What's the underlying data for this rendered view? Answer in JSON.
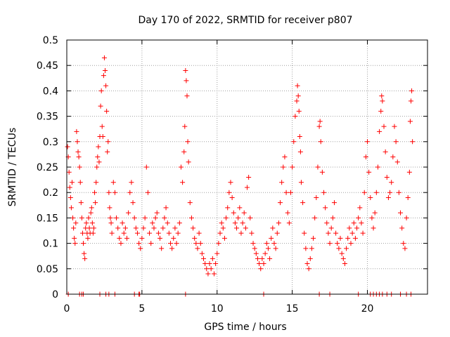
{
  "chart_data": {
    "type": "scatter",
    "title": "Day 170 of 2022, SRMTID for receiver p807",
    "xlabel": "GPS time / hours",
    "ylabel": "SRMTID / TECUs",
    "xlim": [
      0,
      24
    ],
    "ylim": [
      0,
      0.5
    ],
    "xticks": [
      0,
      5,
      10,
      15,
      20
    ],
    "xtick_labels": [
      "0",
      "5",
      "10",
      "15",
      "20"
    ],
    "yticks": [
      0,
      0.05,
      0.1,
      0.15,
      0.2,
      0.25,
      0.3,
      0.35,
      0.4,
      0.45,
      0.5
    ],
    "ytick_labels": [
      "0",
      "0.05",
      "0.1",
      "0.15",
      "0.2",
      "0.25",
      "0.3",
      "0.35",
      "0.4",
      "0.45",
      "0.5"
    ],
    "grid": true,
    "marker": "+",
    "color": "#ff0000",
    "series": [
      {
        "name": "SRMTID",
        "points": [
          [
            0.05,
            0.29
          ],
          [
            0.1,
            0.27
          ],
          [
            0.15,
            0.24
          ],
          [
            0.2,
            0.21
          ],
          [
            0.25,
            0.19
          ],
          [
            0.3,
            0.17
          ],
          [
            0.35,
            0.22
          ],
          [
            0.4,
            0.15
          ],
          [
            0.45,
            0.13
          ],
          [
            0.5,
            0.11
          ],
          [
            0.55,
            0.1
          ],
          [
            0.6,
            0.14
          ],
          [
            0.65,
            0.32
          ],
          [
            0.7,
            0.3
          ],
          [
            0.75,
            0.28
          ],
          [
            0.8,
            0.27
          ],
          [
            0.85,
            0.25
          ],
          [
            0.9,
            0.22
          ],
          [
            0.95,
            0.18
          ],
          [
            1.0,
            0.15
          ],
          [
            1.05,
            0.12
          ],
          [
            1.1,
            0.1
          ],
          [
            1.15,
            0.08
          ],
          [
            1.2,
            0.07
          ],
          [
            1.25,
            0.13
          ],
          [
            1.3,
            0.14
          ],
          [
            1.35,
            0.12
          ],
          [
            1.4,
            0.11
          ],
          [
            1.45,
            0.15
          ],
          [
            1.5,
            0.13
          ],
          [
            1.55,
            0.12
          ],
          [
            1.6,
            0.16
          ],
          [
            1.65,
            0.17
          ],
          [
            1.7,
            0.14
          ],
          [
            1.75,
            0.12
          ],
          [
            1.8,
            0.13
          ],
          [
            1.85,
            0.2
          ],
          [
            1.9,
            0.18
          ],
          [
            1.95,
            0.22
          ],
          [
            2.0,
            0.25
          ],
          [
            2.05,
            0.27
          ],
          [
            2.1,
            0.29
          ],
          [
            2.15,
            0.26
          ],
          [
            2.2,
            0.31
          ],
          [
            2.25,
            0.37
          ],
          [
            2.3,
            0.4
          ],
          [
            2.35,
            0.33
          ],
          [
            2.4,
            0.31
          ],
          [
            2.45,
            0.43
          ],
          [
            2.5,
            0.465
          ],
          [
            2.55,
            0.44
          ],
          [
            2.6,
            0.41
          ],
          [
            2.65,
            0.36
          ],
          [
            2.7,
            0.28
          ],
          [
            2.75,
            0.3
          ],
          [
            2.8,
            0.2
          ],
          [
            2.85,
            0.17
          ],
          [
            2.9,
            0.15
          ],
          [
            2.95,
            0.14
          ],
          [
            3.0,
            0.12
          ],
          [
            3.1,
            0.22
          ],
          [
            3.2,
            0.2
          ],
          [
            3.3,
            0.15
          ],
          [
            3.4,
            0.13
          ],
          [
            3.5,
            0.11
          ],
          [
            3.6,
            0.1
          ],
          [
            3.7,
            0.14
          ],
          [
            3.8,
            0.12
          ],
          [
            3.9,
            0.13
          ],
          [
            4.0,
            0.11
          ],
          [
            4.1,
            0.16
          ],
          [
            4.2,
            0.2
          ],
          [
            4.3,
            0.22
          ],
          [
            4.4,
            0.18
          ],
          [
            4.5,
            0.15
          ],
          [
            4.6,
            0.13
          ],
          [
            4.7,
            0.12
          ],
          [
            4.8,
            0.1
          ],
          [
            4.9,
            0.09
          ],
          [
            5.0,
            0.11
          ],
          [
            5.1,
            0.13
          ],
          [
            5.2,
            0.15
          ],
          [
            5.3,
            0.25
          ],
          [
            5.4,
            0.2
          ],
          [
            5.5,
            0.12
          ],
          [
            5.6,
            0.1
          ],
          [
            5.7,
            0.14
          ],
          [
            5.8,
            0.13
          ],
          [
            5.9,
            0.15
          ],
          [
            6.0,
            0.16
          ],
          [
            6.1,
            0.12
          ],
          [
            6.2,
            0.11
          ],
          [
            6.3,
            0.09
          ],
          [
            6.4,
            0.13
          ],
          [
            6.5,
            0.15
          ],
          [
            6.6,
            0.17
          ],
          [
            6.7,
            0.14
          ],
          [
            6.8,
            0.12
          ],
          [
            6.9,
            0.1
          ],
          [
            7.0,
            0.09
          ],
          [
            7.1,
            0.11
          ],
          [
            7.2,
            0.13
          ],
          [
            7.3,
            0.1
          ],
          [
            7.4,
            0.12
          ],
          [
            7.5,
            0.14
          ],
          [
            7.6,
            0.25
          ],
          [
            7.7,
            0.22
          ],
          [
            7.8,
            0.28
          ],
          [
            7.85,
            0.33
          ],
          [
            7.9,
            0.44
          ],
          [
            7.95,
            0.42
          ],
          [
            8.0,
            0.39
          ],
          [
            8.05,
            0.3
          ],
          [
            8.1,
            0.26
          ],
          [
            8.2,
            0.18
          ],
          [
            8.3,
            0.15
          ],
          [
            8.4,
            0.13
          ],
          [
            8.5,
            0.11
          ],
          [
            8.6,
            0.1
          ],
          [
            8.7,
            0.09
          ],
          [
            8.8,
            0.12
          ],
          [
            8.9,
            0.1
          ],
          [
            9.0,
            0.08
          ],
          [
            9.1,
            0.07
          ],
          [
            9.2,
            0.06
          ],
          [
            9.3,
            0.05
          ],
          [
            9.4,
            0.04
          ],
          [
            9.5,
            0.06
          ],
          [
            9.6,
            0.05
          ],
          [
            9.7,
            0.07
          ],
          [
            9.8,
            0.04
          ],
          [
            9.9,
            0.06
          ],
          [
            10.0,
            0.08
          ],
          [
            10.1,
            0.1
          ],
          [
            10.2,
            0.12
          ],
          [
            10.3,
            0.14
          ],
          [
            10.4,
            0.13
          ],
          [
            10.5,
            0.11
          ],
          [
            10.6,
            0.15
          ],
          [
            10.7,
            0.17
          ],
          [
            10.8,
            0.2
          ],
          [
            10.9,
            0.22
          ],
          [
            11.0,
            0.19
          ],
          [
            11.1,
            0.16
          ],
          [
            11.2,
            0.14
          ],
          [
            11.3,
            0.13
          ],
          [
            11.4,
            0.15
          ],
          [
            11.5,
            0.17
          ],
          [
            11.6,
            0.12
          ],
          [
            11.7,
            0.14
          ],
          [
            11.8,
            0.16
          ],
          [
            11.9,
            0.13
          ],
          [
            12.0,
            0.21
          ],
          [
            12.1,
            0.23
          ],
          [
            12.2,
            0.15
          ],
          [
            12.3,
            0.12
          ],
          [
            12.4,
            0.1
          ],
          [
            12.5,
            0.09
          ],
          [
            12.6,
            0.08
          ],
          [
            12.7,
            0.07
          ],
          [
            12.8,
            0.06
          ],
          [
            12.9,
            0.05
          ],
          [
            13.0,
            0.07
          ],
          [
            13.1,
            0.06
          ],
          [
            13.2,
            0.08
          ],
          [
            13.3,
            0.1
          ],
          [
            13.4,
            0.09
          ],
          [
            13.5,
            0.07
          ],
          [
            13.6,
            0.11
          ],
          [
            13.7,
            0.13
          ],
          [
            13.8,
            0.1
          ],
          [
            13.9,
            0.09
          ],
          [
            14.0,
            0.12
          ],
          [
            14.1,
            0.14
          ],
          [
            14.2,
            0.18
          ],
          [
            14.3,
            0.22
          ],
          [
            14.4,
            0.25
          ],
          [
            14.5,
            0.27
          ],
          [
            14.6,
            0.2
          ],
          [
            14.7,
            0.16
          ],
          [
            14.8,
            0.14
          ],
          [
            14.9,
            0.2
          ],
          [
            15.0,
            0.25
          ],
          [
            15.1,
            0.3
          ],
          [
            15.2,
            0.35
          ],
          [
            15.3,
            0.38
          ],
          [
            15.35,
            0.41
          ],
          [
            15.4,
            0.39
          ],
          [
            15.45,
            0.36
          ],
          [
            15.5,
            0.31
          ],
          [
            15.55,
            0.28
          ],
          [
            15.6,
            0.22
          ],
          [
            15.7,
            0.18
          ],
          [
            15.8,
            0.12
          ],
          [
            15.9,
            0.09
          ],
          [
            16.0,
            0.06
          ],
          [
            16.1,
            0.05
          ],
          [
            16.2,
            0.07
          ],
          [
            16.3,
            0.09
          ],
          [
            16.4,
            0.11
          ],
          [
            16.5,
            0.15
          ],
          [
            16.6,
            0.19
          ],
          [
            16.7,
            0.25
          ],
          [
            16.8,
            0.33
          ],
          [
            16.85,
            0.34
          ],
          [
            16.9,
            0.3
          ],
          [
            17.0,
            0.24
          ],
          [
            17.1,
            0.2
          ],
          [
            17.2,
            0.17
          ],
          [
            17.3,
            0.14
          ],
          [
            17.4,
            0.12
          ],
          [
            17.5,
            0.1
          ],
          [
            17.6,
            0.13
          ],
          [
            17.7,
            0.15
          ],
          [
            17.8,
            0.18
          ],
          [
            17.9,
            0.12
          ],
          [
            18.0,
            0.1
          ],
          [
            18.1,
            0.09
          ],
          [
            18.2,
            0.11
          ],
          [
            18.3,
            0.08
          ],
          [
            18.4,
            0.07
          ],
          [
            18.5,
            0.06
          ],
          [
            18.6,
            0.09
          ],
          [
            18.7,
            0.11
          ],
          [
            18.8,
            0.13
          ],
          [
            18.9,
            0.1
          ],
          [
            19.0,
            0.12
          ],
          [
            19.1,
            0.14
          ],
          [
            19.2,
            0.11
          ],
          [
            19.3,
            0.13
          ],
          [
            19.4,
            0.15
          ],
          [
            19.5,
            0.17
          ],
          [
            19.6,
            0.14
          ],
          [
            19.7,
            0.12
          ],
          [
            19.8,
            0.2
          ],
          [
            19.9,
            0.27
          ],
          [
            20.0,
            0.3
          ],
          [
            20.1,
            0.24
          ],
          [
            20.2,
            0.19
          ],
          [
            20.3,
            0.15
          ],
          [
            20.4,
            0.13
          ],
          [
            20.5,
            0.16
          ],
          [
            20.6,
            0.2
          ],
          [
            20.7,
            0.25
          ],
          [
            20.8,
            0.32
          ],
          [
            20.9,
            0.36
          ],
          [
            20.95,
            0.39
          ],
          [
            21.0,
            0.38
          ],
          [
            21.1,
            0.33
          ],
          [
            21.2,
            0.28
          ],
          [
            21.3,
            0.23
          ],
          [
            21.4,
            0.19
          ],
          [
            21.5,
            0.2
          ],
          [
            21.6,
            0.22
          ],
          [
            21.7,
            0.27
          ],
          [
            21.8,
            0.33
          ],
          [
            21.9,
            0.3
          ],
          [
            22.0,
            0.26
          ],
          [
            22.1,
            0.2
          ],
          [
            22.2,
            0.16
          ],
          [
            22.3,
            0.13
          ],
          [
            22.4,
            0.1
          ],
          [
            22.5,
            0.09
          ],
          [
            22.6,
            0.15
          ],
          [
            22.7,
            0.19
          ],
          [
            22.8,
            0.24
          ],
          [
            22.85,
            0.34
          ],
          [
            22.9,
            0.38
          ],
          [
            22.95,
            0.4
          ],
          [
            23.0,
            0.3
          ]
        ]
      }
    ],
    "zero_markers_x": [
      0.1,
      0.85,
      1.0,
      1.1,
      2.2,
      2.6,
      2.8,
      3.2,
      4.5,
      4.8,
      4.85,
      7.9,
      13.1,
      16.8,
      17.5,
      19.4,
      20.2,
      20.4,
      20.6,
      20.8,
      21.0,
      21.3,
      21.6,
      22.2,
      22.6,
      22.9
    ]
  }
}
